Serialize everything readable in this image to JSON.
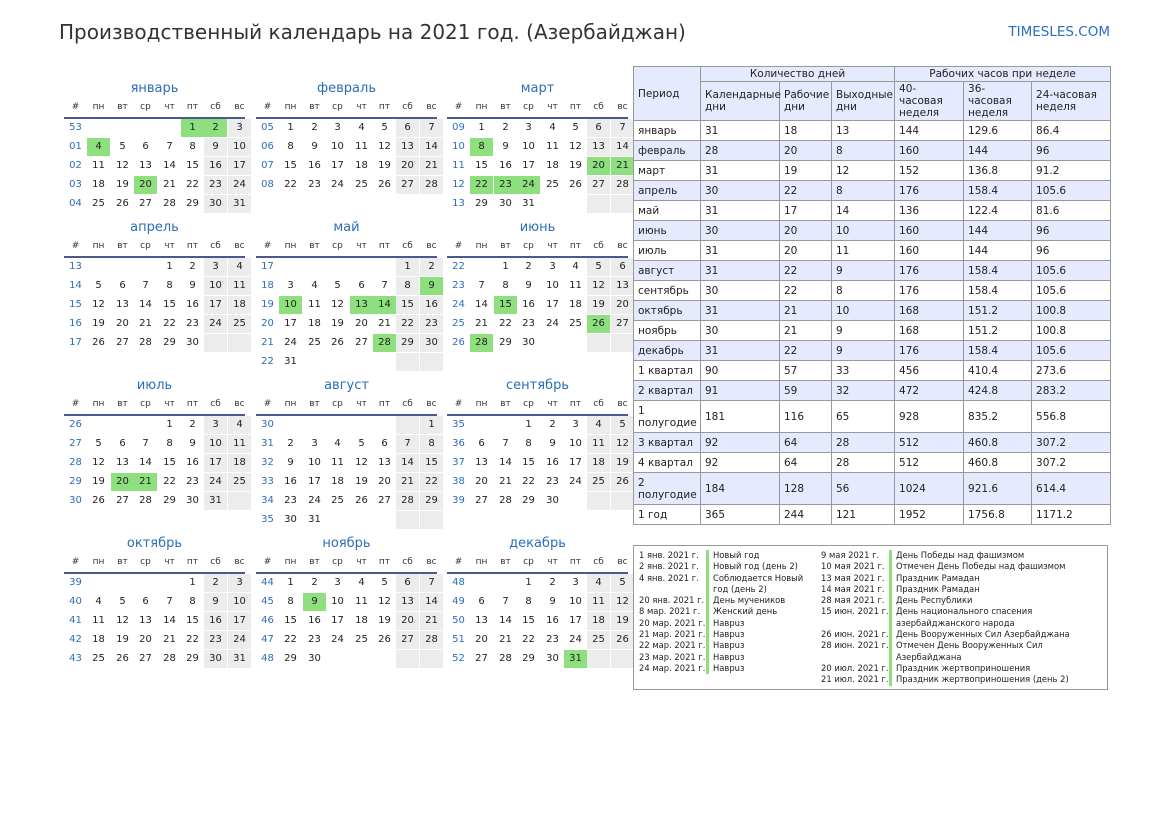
{
  "header": {
    "title": "Производственный календарь на 2021 год. (Азербайджан)",
    "site": "TIMESLES.COM"
  },
  "weekdays": [
    "#",
    "пн",
    "вт",
    "ср",
    "чт",
    "пт",
    "сб",
    "вс"
  ],
  "months": [
    {
      "name": "январь",
      "holidays": [
        1,
        2,
        4,
        20
      ],
      "weeks": [
        [
          "53",
          "",
          "",
          "",
          "",
          "1",
          "2",
          "3"
        ],
        [
          "01",
          "4",
          "5",
          "6",
          "7",
          "8",
          "9",
          "10"
        ],
        [
          "02",
          "11",
          "12",
          "13",
          "14",
          "15",
          "16",
          "17"
        ],
        [
          "03",
          "18",
          "19",
          "20",
          "21",
          "22",
          "23",
          "24"
        ],
        [
          "04",
          "25",
          "26",
          "27",
          "28",
          "29",
          "30",
          "31"
        ]
      ]
    },
    {
      "name": "февраль",
      "holidays": [],
      "weeks": [
        [
          "05",
          "1",
          "2",
          "3",
          "4",
          "5",
          "6",
          "7"
        ],
        [
          "06",
          "8",
          "9",
          "10",
          "11",
          "12",
          "13",
          "14"
        ],
        [
          "07",
          "15",
          "16",
          "17",
          "18",
          "19",
          "20",
          "21"
        ],
        [
          "08",
          "22",
          "23",
          "24",
          "25",
          "26",
          "27",
          "28"
        ]
      ]
    },
    {
      "name": "март",
      "holidays": [
        8,
        20,
        21,
        22,
        23,
        24
      ],
      "weeks": [
        [
          "09",
          "1",
          "2",
          "3",
          "4",
          "5",
          "6",
          "7"
        ],
        [
          "10",
          "8",
          "9",
          "10",
          "11",
          "12",
          "13",
          "14"
        ],
        [
          "11",
          "15",
          "16",
          "17",
          "18",
          "19",
          "20",
          "21"
        ],
        [
          "12",
          "22",
          "23",
          "24",
          "25",
          "26",
          "27",
          "28"
        ],
        [
          "13",
          "29",
          "30",
          "31",
          "",
          "",
          "",
          ""
        ]
      ]
    },
    {
      "name": "апрель",
      "holidays": [],
      "weeks": [
        [
          "13",
          "",
          "",
          "",
          "1",
          "2",
          "3",
          "4"
        ],
        [
          "14",
          "5",
          "6",
          "7",
          "8",
          "9",
          "10",
          "11"
        ],
        [
          "15",
          "12",
          "13",
          "14",
          "15",
          "16",
          "17",
          "18"
        ],
        [
          "16",
          "19",
          "20",
          "21",
          "22",
          "23",
          "24",
          "25"
        ],
        [
          "17",
          "26",
          "27",
          "28",
          "29",
          "30",
          "",
          ""
        ]
      ]
    },
    {
      "name": "май",
      "holidays": [
        9,
        10,
        13,
        14,
        28
      ],
      "weeks": [
        [
          "17",
          "",
          "",
          "",
          "",
          "",
          "1",
          "2"
        ],
        [
          "18",
          "3",
          "4",
          "5",
          "6",
          "7",
          "8",
          "9"
        ],
        [
          "19",
          "10",
          "11",
          "12",
          "13",
          "14",
          "15",
          "16"
        ],
        [
          "20",
          "17",
          "18",
          "19",
          "20",
          "21",
          "22",
          "23"
        ],
        [
          "21",
          "24",
          "25",
          "26",
          "27",
          "28",
          "29",
          "30"
        ],
        [
          "22",
          "31",
          "",
          "",
          "",
          "",
          "",
          ""
        ]
      ]
    },
    {
      "name": "июнь",
      "holidays": [
        15,
        26,
        28
      ],
      "weeks": [
        [
          "22",
          "",
          "1",
          "2",
          "3",
          "4",
          "5",
          "6"
        ],
        [
          "23",
          "7",
          "8",
          "9",
          "10",
          "11",
          "12",
          "13"
        ],
        [
          "24",
          "14",
          "15",
          "16",
          "17",
          "18",
          "19",
          "20"
        ],
        [
          "25",
          "21",
          "22",
          "23",
          "24",
          "25",
          "26",
          "27"
        ],
        [
          "26",
          "28",
          "29",
          "30",
          "",
          "",
          "",
          ""
        ]
      ]
    },
    {
      "name": "июль",
      "holidays": [
        20,
        21
      ],
      "weeks": [
        [
          "26",
          "",
          "",
          "",
          "1",
          "2",
          "3",
          "4"
        ],
        [
          "27",
          "5",
          "6",
          "7",
          "8",
          "9",
          "10",
          "11"
        ],
        [
          "28",
          "12",
          "13",
          "14",
          "15",
          "16",
          "17",
          "18"
        ],
        [
          "29",
          "19",
          "20",
          "21",
          "22",
          "23",
          "24",
          "25"
        ],
        [
          "30",
          "26",
          "27",
          "28",
          "29",
          "30",
          "31",
          ""
        ]
      ]
    },
    {
      "name": "август",
      "holidays": [],
      "weeks": [
        [
          "30",
          "",
          "",
          "",
          "",
          "",
          "",
          "1"
        ],
        [
          "31",
          "2",
          "3",
          "4",
          "5",
          "6",
          "7",
          "8"
        ],
        [
          "32",
          "9",
          "10",
          "11",
          "12",
          "13",
          "14",
          "15"
        ],
        [
          "33",
          "16",
          "17",
          "18",
          "19",
          "20",
          "21",
          "22"
        ],
        [
          "34",
          "23",
          "24",
          "25",
          "26",
          "27",
          "28",
          "29"
        ],
        [
          "35",
          "30",
          "31",
          "",
          "",
          "",
          "",
          ""
        ]
      ]
    },
    {
      "name": "сентябрь",
      "holidays": [],
      "weeks": [
        [
          "35",
          "",
          "",
          "1",
          "2",
          "3",
          "4",
          "5"
        ],
        [
          "36",
          "6",
          "7",
          "8",
          "9",
          "10",
          "11",
          "12"
        ],
        [
          "37",
          "13",
          "14",
          "15",
          "16",
          "17",
          "18",
          "19"
        ],
        [
          "38",
          "20",
          "21",
          "22",
          "23",
          "24",
          "25",
          "26"
        ],
        [
          "39",
          "27",
          "28",
          "29",
          "30",
          "",
          "",
          ""
        ]
      ]
    },
    {
      "name": "октябрь",
      "holidays": [],
      "weeks": [
        [
          "39",
          "",
          "",
          "",
          "",
          "1",
          "2",
          "3"
        ],
        [
          "40",
          "4",
          "5",
          "6",
          "7",
          "8",
          "9",
          "10"
        ],
        [
          "41",
          "11",
          "12",
          "13",
          "14",
          "15",
          "16",
          "17"
        ],
        [
          "42",
          "18",
          "19",
          "20",
          "21",
          "22",
          "23",
          "24"
        ],
        [
          "43",
          "25",
          "26",
          "27",
          "28",
          "29",
          "30",
          "31"
        ]
      ]
    },
    {
      "name": "ноябрь",
      "holidays": [
        9
      ],
      "weeks": [
        [
          "44",
          "1",
          "2",
          "3",
          "4",
          "5",
          "6",
          "7"
        ],
        [
          "45",
          "8",
          "9",
          "10",
          "11",
          "12",
          "13",
          "14"
        ],
        [
          "46",
          "15",
          "16",
          "17",
          "18",
          "19",
          "20",
          "21"
        ],
        [
          "47",
          "22",
          "23",
          "24",
          "25",
          "26",
          "27",
          "28"
        ],
        [
          "48",
          "29",
          "30",
          "",
          "",
          "",
          "",
          ""
        ]
      ]
    },
    {
      "name": "декабрь",
      "holidays": [
        31
      ],
      "weeks": [
        [
          "48",
          "",
          "",
          "1",
          "2",
          "3",
          "4",
          "5"
        ],
        [
          "49",
          "6",
          "7",
          "8",
          "9",
          "10",
          "11",
          "12"
        ],
        [
          "50",
          "13",
          "14",
          "15",
          "16",
          "17",
          "18",
          "19"
        ],
        [
          "51",
          "20",
          "21",
          "22",
          "23",
          "24",
          "25",
          "26"
        ],
        [
          "52",
          "27",
          "28",
          "29",
          "30",
          "31",
          "",
          ""
        ]
      ]
    }
  ],
  "stats": {
    "headers": {
      "period": "Период",
      "days_group": "Количество дней",
      "hours_group": "Рабочих часов при неделе",
      "cols": [
        "Календарные дни",
        "Рабочие дни",
        "Выходные дни",
        "40-часовая неделя",
        "36-часовая неделя",
        "24-часовая неделя"
      ]
    },
    "rows": [
      [
        "январь",
        "31",
        "18",
        "13",
        "144",
        "129.6",
        "86.4"
      ],
      [
        "февраль",
        "28",
        "20",
        "8",
        "160",
        "144",
        "96"
      ],
      [
        "март",
        "31",
        "19",
        "12",
        "152",
        "136.8",
        "91.2"
      ],
      [
        "апрель",
        "30",
        "22",
        "8",
        "176",
        "158.4",
        "105.6"
      ],
      [
        "май",
        "31",
        "17",
        "14",
        "136",
        "122.4",
        "81.6"
      ],
      [
        "июнь",
        "30",
        "20",
        "10",
        "160",
        "144",
        "96"
      ],
      [
        "июль",
        "31",
        "20",
        "11",
        "160",
        "144",
        "96"
      ],
      [
        "август",
        "31",
        "22",
        "9",
        "176",
        "158.4",
        "105.6"
      ],
      [
        "сентябрь",
        "30",
        "22",
        "8",
        "176",
        "158.4",
        "105.6"
      ],
      [
        "октябрь",
        "31",
        "21",
        "10",
        "168",
        "151.2",
        "100.8"
      ],
      [
        "ноябрь",
        "30",
        "21",
        "9",
        "168",
        "151.2",
        "100.8"
      ],
      [
        "декабрь",
        "31",
        "22",
        "9",
        "176",
        "158.4",
        "105.6"
      ],
      [
        "1 квартал",
        "90",
        "57",
        "33",
        "456",
        "410.4",
        "273.6"
      ],
      [
        "2 квартал",
        "91",
        "59",
        "32",
        "472",
        "424.8",
        "283.2"
      ],
      [
        "1 полугодие",
        "181",
        "116",
        "65",
        "928",
        "835.2",
        "556.8"
      ],
      [
        "3 квартал",
        "92",
        "64",
        "28",
        "512",
        "460.8",
        "307.2"
      ],
      [
        "4 квартал",
        "92",
        "64",
        "28",
        "512",
        "460.8",
        "307.2"
      ],
      [
        "2 полугодие",
        "184",
        "128",
        "56",
        "1024",
        "921.6",
        "614.4"
      ],
      [
        "1 год",
        "365",
        "244",
        "121",
        "1952",
        "1756.8",
        "1171.2"
      ]
    ]
  },
  "holidays_list": {
    "left": [
      {
        "date": "1 янв. 2021 г.",
        "name": "Новый год"
      },
      {
        "date": "2 янв. 2021 г.",
        "name": "Новый год (день 2)"
      },
      {
        "date": "4 янв. 2021 г.",
        "name": "Соблюдается Новый год (день 2)"
      },
      {
        "date": "20 янв. 2021 г.",
        "name": "День мучеников"
      },
      {
        "date": "8 мар. 2021 г.",
        "name": "Женский день"
      },
      {
        "date": "20 мар. 2021 г.",
        "name": "Наврuз"
      },
      {
        "date": "21 мар. 2021 г.",
        "name": "Наврuз"
      },
      {
        "date": "22 мар. 2021 г.",
        "name": "Наврuз"
      },
      {
        "date": "23 мар. 2021 г.",
        "name": "Наврuз"
      },
      {
        "date": "24 мар. 2021 г.",
        "name": "Наврuз"
      }
    ],
    "right": [
      {
        "date": "9 мая 2021 г.",
        "name": "День Победы над фашизмом"
      },
      {
        "date": "10 мая 2021 г.",
        "name": "Отмечен День Победы над фашизмом"
      },
      {
        "date": "13 мая 2021 г.",
        "name": "Праздник Рамадан"
      },
      {
        "date": "14 мая 2021 г.",
        "name": "Праздник Рамадан"
      },
      {
        "date": "28 мая 2021 г.",
        "name": "День Республики"
      },
      {
        "date": "15 июн. 2021 г.",
        "name": "День национального спасения азербайджанского народа"
      },
      {
        "date": "26 июн. 2021 г.",
        "name": "День Вооруженных Сил Азербайджана"
      },
      {
        "date": "28 июн. 2021 г.",
        "name": "Отмечен День Вооруженных Сил Азербайджана"
      },
      {
        "date": "20 июл. 2021 г.",
        "name": "Праздник жертвоприношения"
      },
      {
        "date": "21 июл. 2021 г.",
        "name": "Праздник жертвоприношения (день 2)"
      }
    ]
  }
}
